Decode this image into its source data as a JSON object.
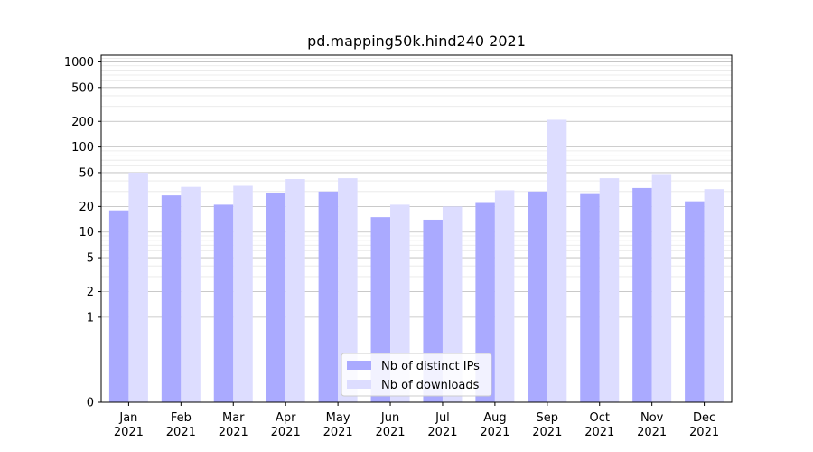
{
  "chart_data": {
    "type": "bar",
    "title": "pd.mapping50k.hind240 2021",
    "xlabel": "",
    "ylabel": "",
    "y_scale": "symlog",
    "ylim": [
      0,
      1200
    ],
    "grid": "y",
    "legend_position": "lower center",
    "categories": [
      [
        "Jan",
        "2021"
      ],
      [
        "Feb",
        "2021"
      ],
      [
        "Mar",
        "2021"
      ],
      [
        "Apr",
        "2021"
      ],
      [
        "May",
        "2021"
      ],
      [
        "Jun",
        "2021"
      ],
      [
        "Jul",
        "2021"
      ],
      [
        "Aug",
        "2021"
      ],
      [
        "Sep",
        "2021"
      ],
      [
        "Oct",
        "2021"
      ],
      [
        "Nov",
        "2021"
      ],
      [
        "Dec",
        "2021"
      ]
    ],
    "y_ticks": [
      0,
      1,
      2,
      5,
      10,
      20,
      50,
      100,
      200,
      500,
      1000
    ],
    "series": [
      {
        "name": "Nb of distinct IPs",
        "color": "#aaaaff",
        "values": [
          18,
          27,
          21,
          29,
          30,
          15,
          14,
          22,
          30,
          28,
          33,
          23
        ]
      },
      {
        "name": "Nb of downloads",
        "color": "#ddddff",
        "values": [
          50,
          34,
          35,
          42,
          43,
          21,
          20,
          31,
          209,
          43,
          47,
          32
        ]
      }
    ]
  }
}
